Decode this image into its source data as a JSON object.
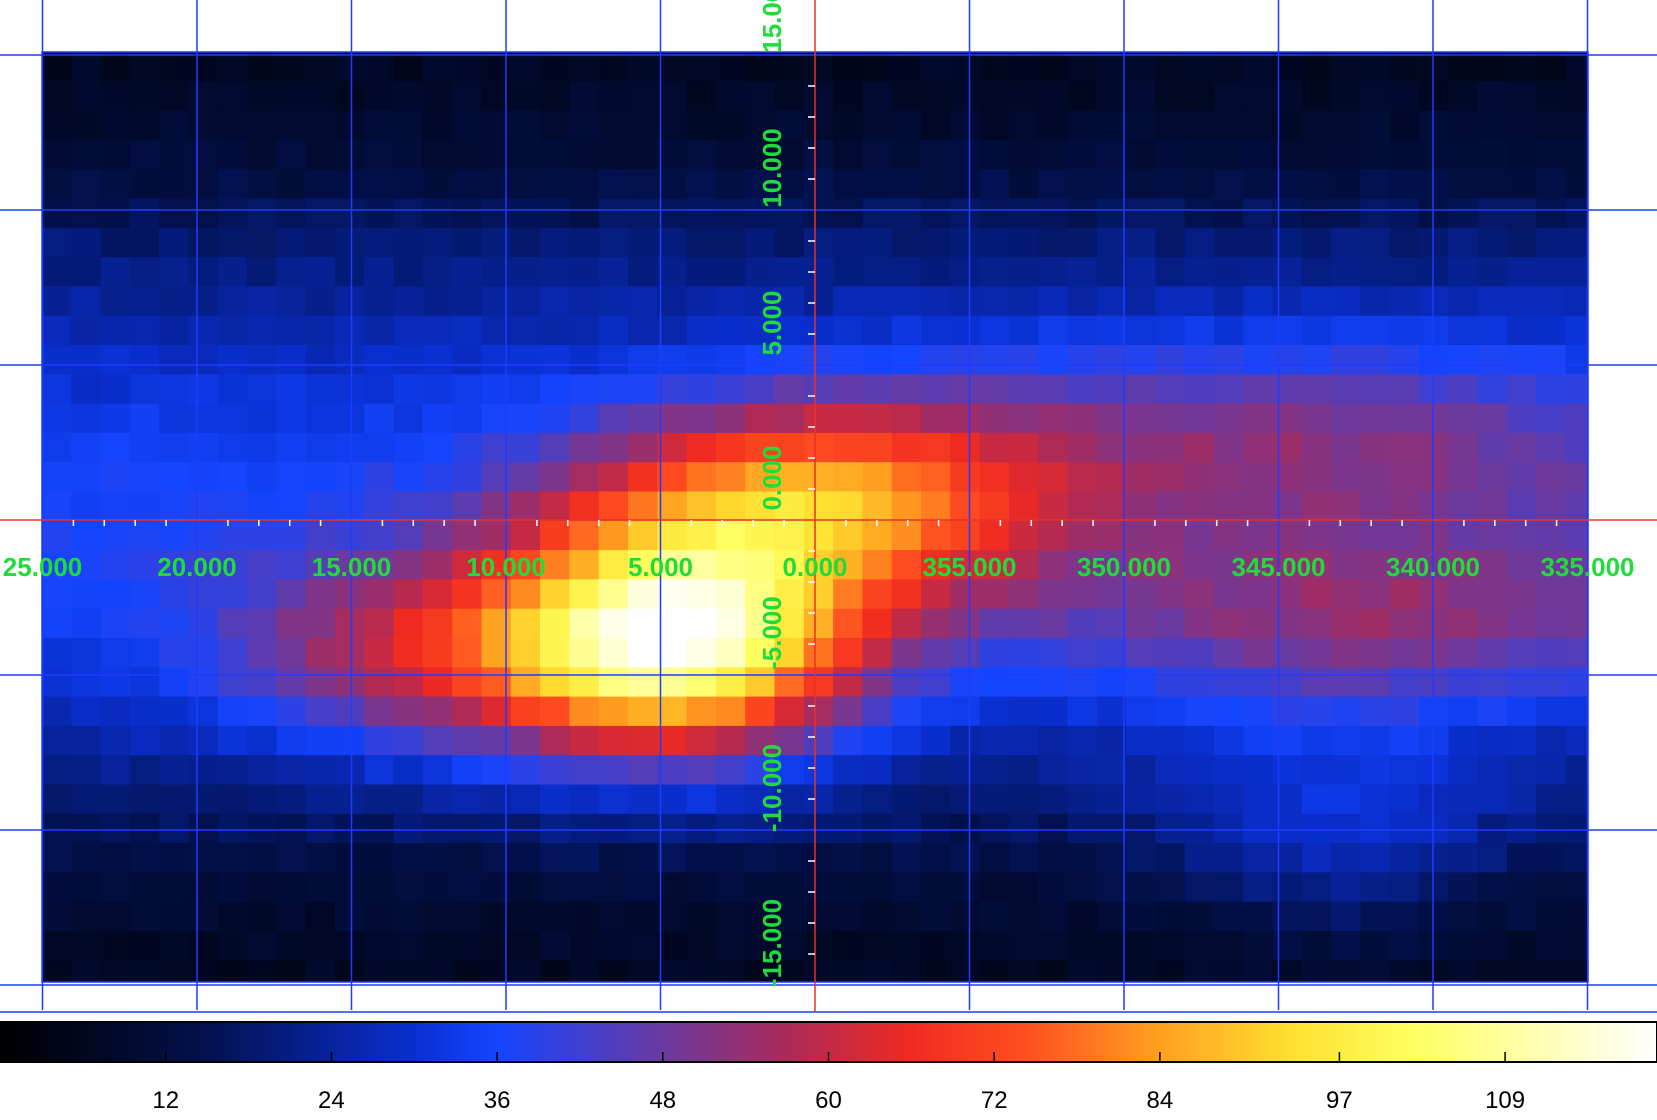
{
  "colors": {
    "grid": "#1f3bff",
    "axis": "#e8312a",
    "coord_label": "#1fdc3a",
    "colorbar_border": "#000000"
  },
  "chart_data": {
    "type": "heatmap",
    "title": "",
    "xlabel": "",
    "ylabel": "",
    "colormap": "hot-blue (black-blue-purple-red-orange-yellow-white)",
    "x_axis": {
      "direction": "decreasing-right",
      "ticks": [
        "25.000",
        "20.000",
        "15.000",
        "10.000",
        "5.000",
        "0.000",
        "355.000",
        "350.000",
        "345.000",
        "340.000",
        "335.000"
      ]
    },
    "y_axis": {
      "ticks": [
        "15.000",
        "10.000",
        "5.000",
        "0.000",
        "-5.000",
        "-10.000",
        "-15.000"
      ]
    },
    "grid": true,
    "colorbar": {
      "placement": "bottom",
      "min": 0,
      "max": 120,
      "ticks": [
        "12",
        "24",
        "36",
        "48",
        "60",
        "72",
        "84",
        "97",
        "109"
      ]
    },
    "x_range_deg": [
      25,
      -25
    ],
    "y_range_deg": [
      -15,
      15
    ],
    "sources": [
      {
        "l": 4.5,
        "b": -4.0,
        "sigma_l": 4.0,
        "sigma_b": 2.5,
        "value": 80
      },
      {
        "l": 0.0,
        "b": 0.5,
        "sigma_l": 5.0,
        "sigma_b": 2.2,
        "value": 45
      },
      {
        "l": 12.5,
        "b": -4.5,
        "sigma_l": 5.0,
        "sigma_b": 2.2,
        "value": 28
      },
      {
        "l": -18.0,
        "b": -3.5,
        "sigma_l": 8.0,
        "sigma_b": 2.0,
        "value": 20
      },
      {
        "l": -17.0,
        "b": -10.0,
        "sigma_l": 4.0,
        "sigma_b": 2.5,
        "value": 14
      },
      {
        "l": -15.0,
        "b": 2.5,
        "sigma_l": 10.0,
        "sigma_b": 2.5,
        "value": 18
      }
    ],
    "background": {
      "base": 8,
      "disk_peak": 28,
      "disk_sigma_b": 6.5
    }
  }
}
